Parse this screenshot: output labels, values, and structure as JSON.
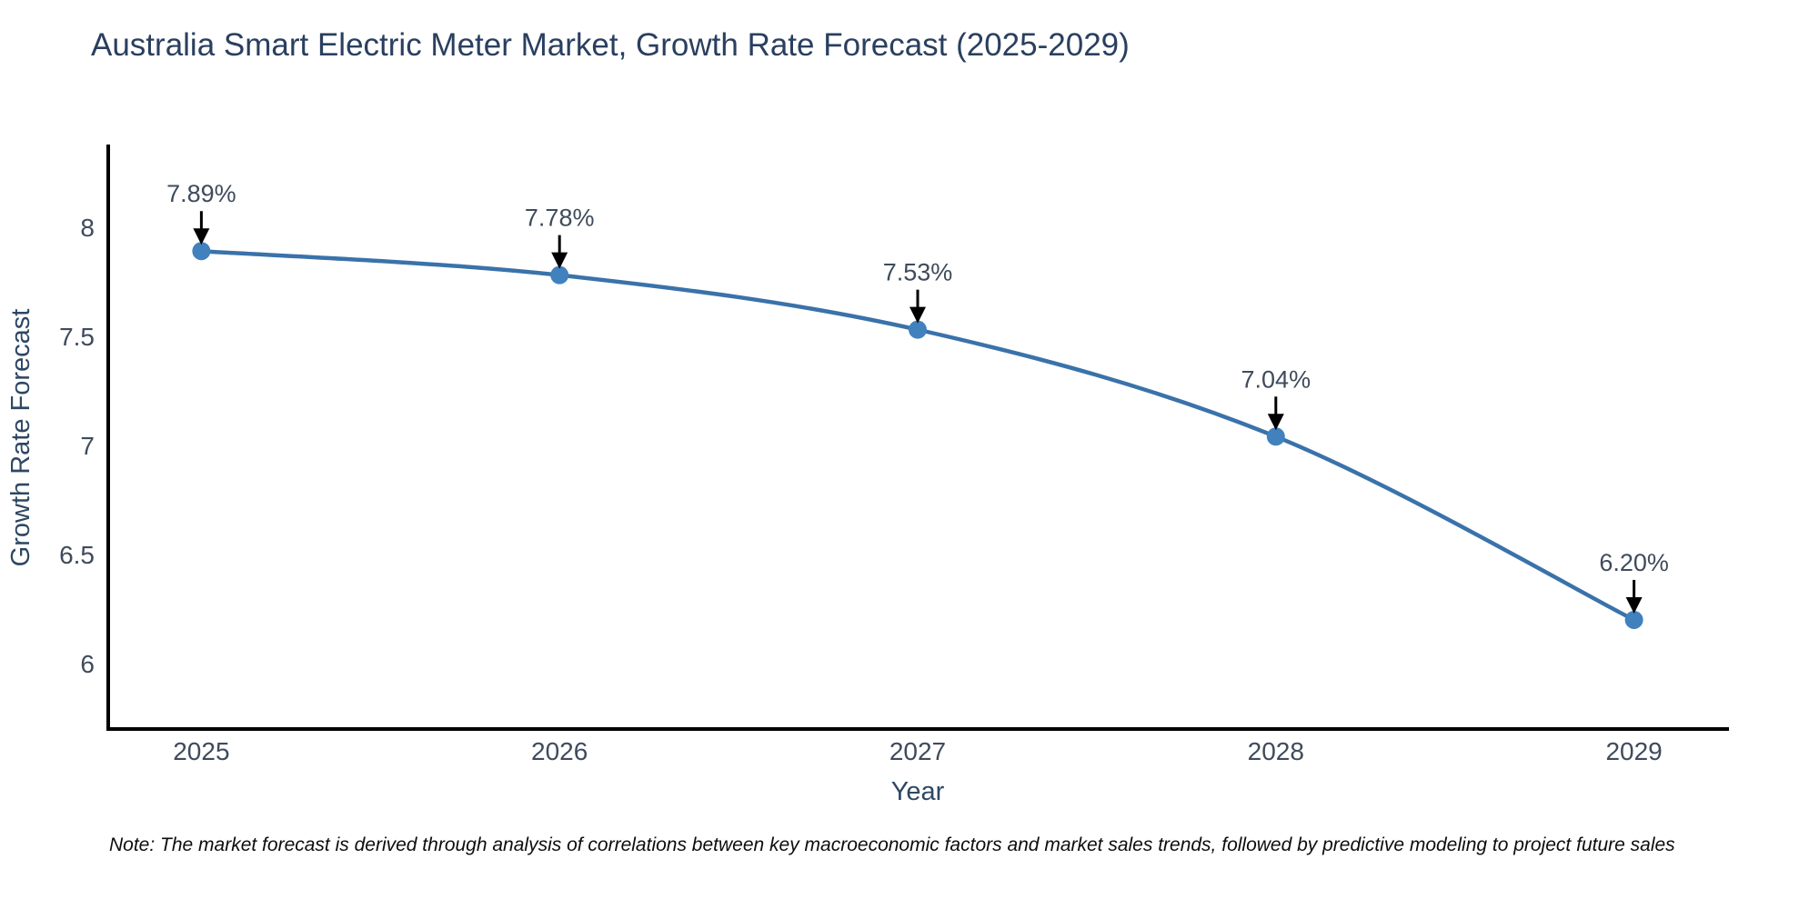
{
  "chart_data": {
    "type": "line",
    "title": "Australia Smart Electric Meter Market, Growth Rate Forecast (2025-2029)",
    "xlabel": "Year",
    "ylabel": "Growth Rate Forecast",
    "x": [
      2025,
      2026,
      2027,
      2028,
      2029
    ],
    "y": [
      7.89,
      7.78,
      7.53,
      7.04,
      6.2
    ],
    "point_labels": [
      "7.89%",
      "7.78%",
      "7.53%",
      "7.04%",
      "6.20%"
    ],
    "xtick_labels": [
      "2025",
      "2026",
      "2027",
      "2028",
      "2029"
    ],
    "yticks": [
      6,
      6.5,
      7,
      7.5,
      8
    ],
    "ytick_labels": [
      "6",
      "6.5",
      "7",
      "7.5",
      "8"
    ],
    "xlim": [
      2024.74,
      2029.26
    ],
    "ylim": [
      5.7,
      8.37
    ],
    "grid": false,
    "legend": false,
    "line_shape": "spline",
    "annotation_arrows": true
  },
  "note": {
    "text": "Note: The market forecast is derived through analysis of correlations between key macroeconomic factors and market sales trends, followed by predictive modeling to project future sales"
  },
  "colors": {
    "line": "#3a72aa",
    "marker": "#4181bd",
    "axis": "#000000",
    "title_text": "#2a3f5f",
    "axis_title_text": "#2e4763",
    "tick_text": "#3f4b5c",
    "annotation_text": "#3f4b5c",
    "arrow": "#000000",
    "background": "#ffffff"
  }
}
